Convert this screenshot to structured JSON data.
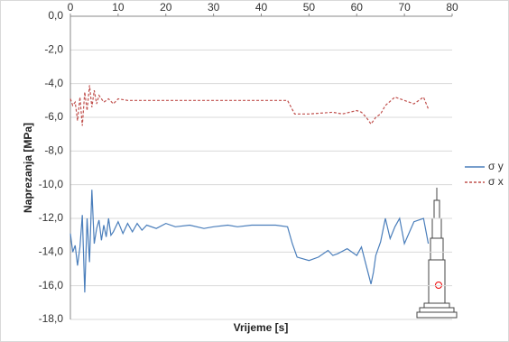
{
  "chart_data": {
    "type": "line",
    "x_label": "Vrijeme [s]",
    "y_label": "Naprezanja [MPa]",
    "xlim": [
      0,
      80
    ],
    "xticks": [
      0,
      10,
      20,
      30,
      40,
      50,
      60,
      70,
      80
    ],
    "ylim": [
      -18,
      0
    ],
    "yticks": [
      {
        "value": 0,
        "label": "0,0"
      },
      {
        "value": -2,
        "label": "-2,0"
      },
      {
        "value": -4,
        "label": "-4,0"
      },
      {
        "value": -6,
        "label": "-6,0"
      },
      {
        "value": -8,
        "label": "-8,0"
      },
      {
        "value": -10,
        "label": "-10,0"
      },
      {
        "value": -12,
        "label": "-12,0"
      },
      {
        "value": -14,
        "label": "-14,0"
      },
      {
        "value": -16,
        "label": "-16,0"
      },
      {
        "value": -18,
        "label": "-18,0"
      }
    ],
    "grid": true,
    "legend": "right",
    "series": [
      {
        "name": "σ y",
        "color": "#4a7ebb",
        "dashed": false,
        "x": [
          0,
          0.5,
          1,
          1.5,
          2,
          2.5,
          3,
          3.5,
          4,
          4.5,
          5,
          5.5,
          6,
          6.5,
          7,
          7.5,
          8,
          8.5,
          9,
          10,
          11,
          12,
          13,
          14,
          15,
          16,
          18,
          20,
          22,
          25,
          28,
          30,
          33,
          35,
          38,
          40,
          43,
          45.5,
          46.5,
          47.5,
          50,
          52,
          54,
          55,
          56,
          58,
          60,
          61,
          62,
          63,
          63.5,
          64,
          65,
          66,
          67,
          68,
          69,
          70,
          72,
          74,
          75
        ],
        "values": [
          -12.9,
          -14.0,
          -13.6,
          -14.8,
          -13.7,
          -11.8,
          -16.4,
          -12.0,
          -14.6,
          -10.3,
          -13.5,
          -12.6,
          -12.1,
          -13.3,
          -12.4,
          -13.1,
          -12.0,
          -13.0,
          -12.8,
          -12.2,
          -12.9,
          -12.3,
          -12.8,
          -12.3,
          -12.7,
          -12.4,
          -12.6,
          -12.3,
          -12.5,
          -12.4,
          -12.6,
          -12.5,
          -12.4,
          -12.5,
          -12.4,
          -12.4,
          -12.4,
          -12.5,
          -13.5,
          -14.3,
          -14.5,
          -14.3,
          -13.9,
          -14.2,
          -14.1,
          -13.8,
          -14.2,
          -13.7,
          -14.8,
          -15.9,
          -15.2,
          -14.2,
          -13.4,
          -12.0,
          -13.2,
          -12.5,
          -12.0,
          -13.5,
          -12.2,
          -12.0,
          -13.5
        ]
      },
      {
        "name": "σ x",
        "color": "#c0504d",
        "dashed": true,
        "x": [
          0,
          0.5,
          1,
          1.5,
          2,
          2.5,
          3,
          3.5,
          4,
          4.5,
          5,
          5.5,
          6,
          7,
          8,
          9,
          10,
          12,
          15,
          20,
          25,
          30,
          35,
          40,
          45.5,
          47,
          50,
          55,
          57,
          60,
          61,
          62,
          63,
          64,
          65,
          66,
          68,
          70,
          72,
          74,
          75
        ],
        "values": [
          -4.9,
          -5.3,
          -5.1,
          -6.2,
          -4.8,
          -6.5,
          -4.5,
          -5.6,
          -4.1,
          -5.4,
          -4.4,
          -5.2,
          -4.7,
          -5.1,
          -4.9,
          -5.2,
          -4.9,
          -5.0,
          -5.0,
          -5.0,
          -5.0,
          -5.0,
          -5.0,
          -5.0,
          -5.0,
          -5.8,
          -5.8,
          -5.7,
          -5.8,
          -5.6,
          -5.7,
          -6.0,
          -6.4,
          -6.0,
          -5.8,
          -5.3,
          -4.8,
          -5.0,
          -5.2,
          -4.8,
          -5.5
        ]
      }
    ]
  }
}
